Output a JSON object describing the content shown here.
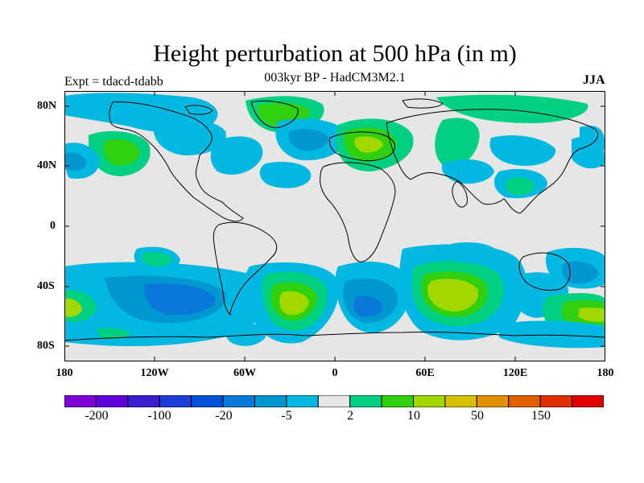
{
  "title": "Height perturbation at 500 hPa (in m)",
  "subtitle": "003kyr BP - HadCM3M2.1",
  "left_label": "Expt = tdacd-tdabb",
  "right_label": "JJA",
  "lat_labels": [
    "80N",
    "40N",
    "0",
    "40S",
    "80S"
  ],
  "lon_labels": [
    "180",
    "120W",
    "60W",
    "0",
    "60E",
    "120E",
    "180"
  ],
  "colorbar": {
    "labels": [
      "-200",
      "-100",
      "-20",
      "-5",
      "2",
      "10",
      "50",
      "150"
    ],
    "colors": [
      "#8000d8",
      "#6000d8",
      "#3a1ed0",
      "#1e3cd8",
      "#0050d8",
      "#0a78d8",
      "#0096d0",
      "#00b8e0",
      "#e6e6e6",
      "#00d080",
      "#30d010",
      "#a0d800",
      "#d8c000",
      "#e09000",
      "#e06000",
      "#e03000",
      "#e00000"
    ]
  },
  "colors": {
    "background": "#e6e6e6",
    "light_blue": "#00b8e0",
    "mid_blue": "#0096d0",
    "blue": "#0a78d8",
    "green": "#00d080",
    "bright_green": "#30d010",
    "yellow_green": "#a0d800"
  }
}
